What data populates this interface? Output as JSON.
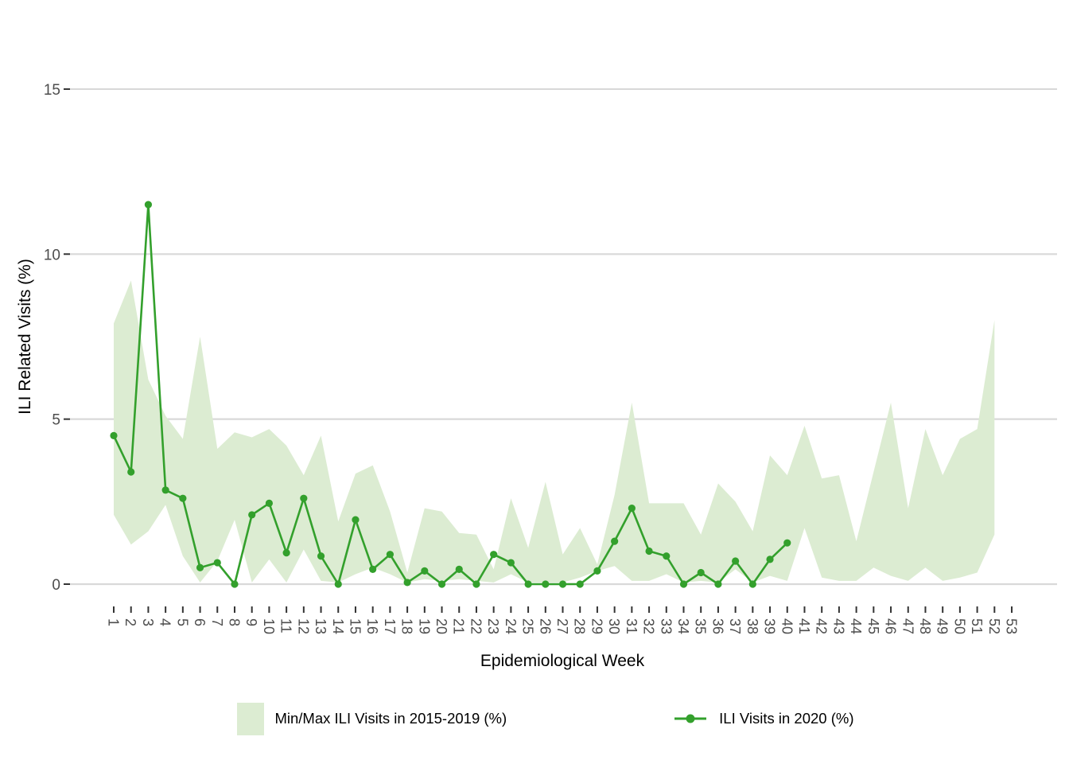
{
  "figure": {
    "x_axis": {
      "title": "Epidemiological Week",
      "tick_labels": [
        "1",
        "2",
        "3",
        "4",
        "5",
        "6",
        "7",
        "8",
        "9",
        "10",
        "11",
        "12",
        "13",
        "14",
        "15",
        "16",
        "17",
        "18",
        "19",
        "20",
        "21",
        "22",
        "23",
        "24",
        "25",
        "26",
        "27",
        "28",
        "29",
        "30",
        "31",
        "32",
        "33",
        "34",
        "35",
        "36",
        "37",
        "38",
        "39",
        "40",
        "41",
        "42",
        "43",
        "44",
        "45",
        "46",
        "47",
        "48",
        "49",
        "50",
        "51",
        "52",
        "53"
      ]
    },
    "y_axis": {
      "title": "ILI Related Visits (%)",
      "tick_labels": [
        "0",
        "5",
        "10",
        "15"
      ],
      "tick_values": [
        0,
        5,
        10,
        15
      ]
    },
    "legend": [
      {
        "key": "band",
        "label": "Min/Max ILI Visits in 2015-2019 (%)"
      },
      {
        "key": "line",
        "label": "ILI Visits in 2020 (%)"
      }
    ]
  },
  "colors": {
    "band_fill": "#dcecd2",
    "line": "#33a02c",
    "gridline": "#d9d9d9",
    "tick_mark": "#333333",
    "tick_label": "#4d4d4d",
    "background": "#ffffff"
  },
  "chart_data": {
    "type": "area",
    "title": "",
    "xlabel": "Epidemiological Week",
    "ylabel": "ILI Related Visits (%)",
    "xlim": [
      1,
      53
    ],
    "ylim": [
      0,
      15
    ],
    "grid": "horizontal gridlines at 0, 5, 10, 15 only",
    "legend_position": "bottom",
    "series": [
      {
        "name": "Min/Max ILI Visits in 2015-2019 (%)",
        "type": "band",
        "weeks": [
          1,
          2,
          3,
          4,
          5,
          6,
          7,
          8,
          9,
          10,
          11,
          12,
          13,
          14,
          15,
          16,
          17,
          18,
          19,
          20,
          21,
          22,
          23,
          24,
          25,
          26,
          27,
          28,
          29,
          30,
          31,
          32,
          33,
          34,
          35,
          36,
          37,
          38,
          39,
          40,
          41,
          42,
          43,
          44,
          45,
          46,
          47,
          48,
          49,
          50,
          51,
          52
        ],
        "max": [
          7.9,
          9.2,
          6.2,
          5.1,
          4.4,
          7.5,
          4.1,
          4.6,
          4.45,
          4.7,
          4.2,
          3.3,
          4.5,
          1.9,
          3.35,
          3.6,
          2.2,
          0.35,
          2.3,
          2.2,
          1.55,
          1.5,
          0.45,
          2.6,
          1.1,
          3.1,
          0.9,
          1.7,
          0.6,
          2.7,
          5.5,
          2.45,
          2.45,
          2.45,
          1.5,
          3.05,
          2.5,
          1.6,
          3.9,
          3.3,
          4.8,
          3.2,
          3.3,
          1.3,
          3.4,
          5.5,
          2.3,
          4.7,
          3.3,
          4.4,
          4.7,
          8.0
        ],
        "min": [
          2.1,
          1.2,
          1.6,
          2.4,
          0.85,
          0.05,
          0.7,
          1.95,
          0.05,
          0.75,
          0.05,
          1.05,
          0.1,
          0.05,
          0.3,
          0.5,
          0.3,
          0.05,
          0.15,
          0.1,
          0.15,
          0.1,
          0.05,
          0.3,
          0.05,
          0.05,
          0.05,
          0.2,
          0.4,
          0.55,
          0.1,
          0.1,
          0.3,
          0.05,
          0.1,
          0.05,
          0.45,
          0.05,
          0.25,
          0.1,
          1.7,
          0.2,
          0.1,
          0.1,
          0.5,
          0.25,
          0.1,
          0.5,
          0.1,
          0.2,
          0.35,
          1.5
        ]
      },
      {
        "name": "ILI Visits in 2020 (%)",
        "type": "line+markers",
        "weeks": [
          1,
          2,
          3,
          4,
          5,
          6,
          7,
          8,
          9,
          10,
          11,
          12,
          13,
          14,
          15,
          16,
          17,
          18,
          19,
          20,
          21,
          22,
          23,
          24,
          25,
          26,
          27,
          28,
          29,
          30,
          31,
          32,
          33,
          34,
          35,
          36,
          37,
          38,
          39,
          40
        ],
        "values": [
          4.5,
          3.4,
          11.5,
          2.85,
          2.6,
          0.5,
          0.65,
          0,
          2.1,
          2.45,
          0.95,
          2.6,
          0.85,
          0,
          1.95,
          0.45,
          0.9,
          0.05,
          0.4,
          0,
          0.45,
          0,
          0.9,
          0.65,
          0,
          0,
          0,
          0,
          0.4,
          1.3,
          2.3,
          1.0,
          0.85,
          0,
          0.35,
          0,
          0.7,
          0,
          0.75,
          1.25
        ]
      }
    ]
  }
}
